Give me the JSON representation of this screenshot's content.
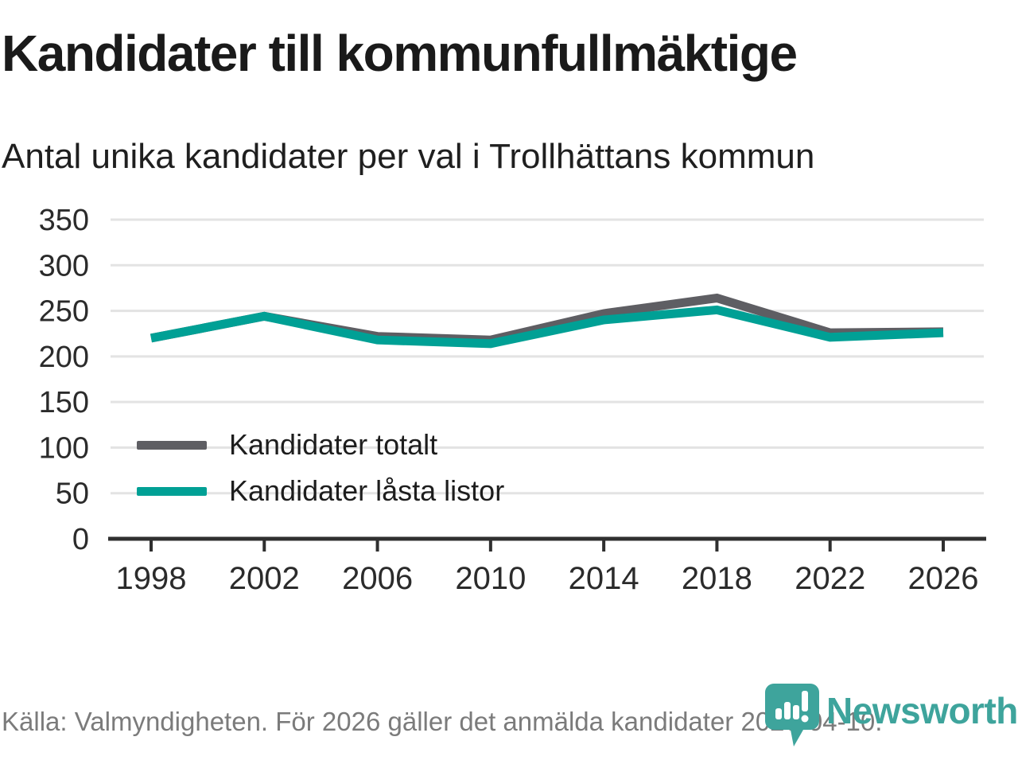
{
  "header": {
    "title": "Kandidater till kommunfullmäktige",
    "subtitle": "Antal unika kandidater per val i Trollhättans kommun"
  },
  "chart_data": {
    "type": "line",
    "categories": [
      "1998",
      "2002",
      "2006",
      "2010",
      "2014",
      "2018",
      "2022",
      "2026"
    ],
    "series": [
      {
        "name": "Kandidater totalt",
        "color": "#5e5e63",
        "values": [
          220,
          244,
          222,
          218,
          247,
          264,
          226,
          227
        ]
      },
      {
        "name": "Kandidater låsta listor",
        "color": "#00a095",
        "values": [
          220,
          244,
          218,
          214,
          240,
          251,
          221,
          226
        ]
      }
    ],
    "ylabel": "",
    "xlabel": "",
    "ylim": [
      0,
      350
    ],
    "yticks": [
      0,
      50,
      100,
      150,
      200,
      250,
      300,
      350
    ],
    "grid": true,
    "legend_position": "inside-left"
  },
  "footer": {
    "source": "Källa: Valmyndigheten. För 2026 gäller det anmälda kandidater 2026-04-10.",
    "brand": "Newsworthy"
  },
  "colors": {
    "accent_teal": "#00a095",
    "line_gray": "#5e5e63",
    "logo_teal": "#3ea49c",
    "gridline": "#e3e3e3",
    "axis": "#2f2f2f",
    "tick_label": "#2b2b2b"
  }
}
